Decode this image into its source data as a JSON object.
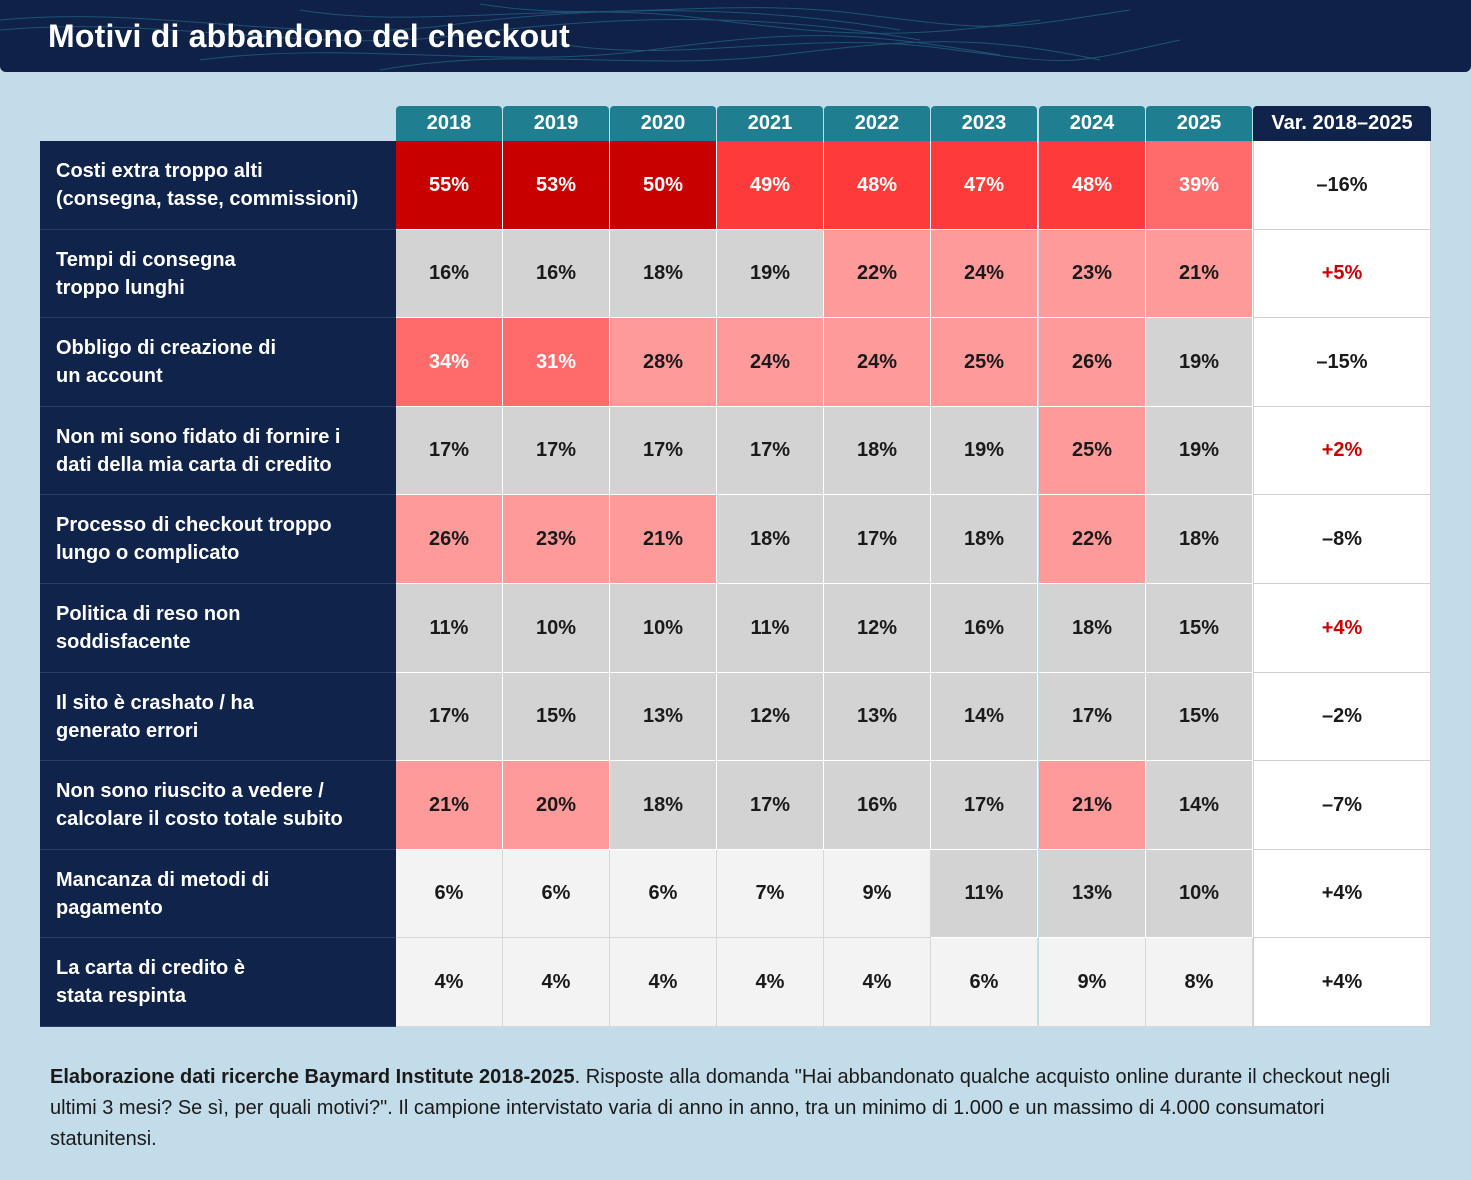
{
  "title": "Motivi di abbandono del checkout",
  "chart_data": {
    "type": "table",
    "title": "Motivi di abbandono del checkout",
    "columns": [
      "2018",
      "2019",
      "2020",
      "2021",
      "2022",
      "2023",
      "2024",
      "2025"
    ],
    "change_header": "Var. 2018–2025",
    "rows": [
      {
        "label": "Costi extra troppo alti\n(consegna, tasse, commissioni)",
        "values": [
          "55%",
          "53%",
          "50%",
          "49%",
          "48%",
          "47%",
          "48%",
          "39%"
        ],
        "change": "–16%"
      },
      {
        "label": "Tempi di consegna\ntroppo lunghi",
        "values": [
          "16%",
          "16%",
          "18%",
          "19%",
          "22%",
          "24%",
          "23%",
          "21%"
        ],
        "change": "+5%"
      },
      {
        "label": "Obbligo di creazione di\nun account",
        "values": [
          "34%",
          "31%",
          "28%",
          "24%",
          "24%",
          "25%",
          "26%",
          "19%"
        ],
        "change": "–15%"
      },
      {
        "label": "Non mi sono fidato di fornire i\ndati della mia carta di credito",
        "values": [
          "17%",
          "17%",
          "17%",
          "17%",
          "18%",
          "19%",
          "25%",
          "19%"
        ],
        "change": "+2%"
      },
      {
        "label": "Processo di checkout troppo\nlungo o complicato",
        "values": [
          "26%",
          "23%",
          "21%",
          "18%",
          "17%",
          "18%",
          "22%",
          "18%"
        ],
        "change": "–8%"
      },
      {
        "label": "Politica di reso non\nsoddisfacente",
        "values": [
          "11%",
          "10%",
          "10%",
          "11%",
          "12%",
          "16%",
          "18%",
          "15%"
        ],
        "change": "+4%"
      },
      {
        "label": "Il sito è crashato / ha\ngenerato errori",
        "values": [
          "17%",
          "15%",
          "13%",
          "12%",
          "13%",
          "14%",
          "17%",
          "15%"
        ],
        "change": "–2%"
      },
      {
        "label": "Non sono riuscito a vedere /\ncalcolare il costo totale subito",
        "values": [
          "21%",
          "20%",
          "18%",
          "17%",
          "16%",
          "17%",
          "21%",
          "14%"
        ],
        "change": "–7%"
      },
      {
        "label": "Mancanza di metodi di\npagamento",
        "values": [
          "6%",
          "6%",
          "6%",
          "7%",
          "9%",
          "11%",
          "13%",
          "10%"
        ],
        "change": "+4%"
      },
      {
        "label": "La carta di credito è\nstata respinta",
        "values": [
          "4%",
          "4%",
          "4%",
          "4%",
          "4%",
          "6%",
          "9%",
          "8%"
        ],
        "change": "+4%"
      }
    ],
    "cell_colors": [
      [
        "#c80000",
        "#c80000",
        "#c80000",
        "#ff3a3a",
        "#ff3a3a",
        "#ff3a3a",
        "#ff3a3a",
        "#ff6b6b"
      ],
      [
        "#d3d3d3",
        "#d3d3d3",
        "#d3d3d3",
        "#d3d3d3",
        "#ff9a9a",
        "#ff9a9a",
        "#ff9a9a",
        "#ff9a9a"
      ],
      [
        "#ff6b6b",
        "#ff6b6b",
        "#ff9a9a",
        "#ff9a9a",
        "#ff9a9a",
        "#ff9a9a",
        "#ff9a9a",
        "#d3d3d3"
      ],
      [
        "#d3d3d3",
        "#d3d3d3",
        "#d3d3d3",
        "#d3d3d3",
        "#d3d3d3",
        "#d3d3d3",
        "#ff9a9a",
        "#d3d3d3"
      ],
      [
        "#ff9a9a",
        "#ff9a9a",
        "#ff9a9a",
        "#d3d3d3",
        "#d3d3d3",
        "#d3d3d3",
        "#ff9a9a",
        "#d3d3d3"
      ],
      [
        "#d3d3d3",
        "#d3d3d3",
        "#d3d3d3",
        "#d3d3d3",
        "#d3d3d3",
        "#d3d3d3",
        "#d3d3d3",
        "#d3d3d3"
      ],
      [
        "#d3d3d3",
        "#d3d3d3",
        "#d3d3d3",
        "#d3d3d3",
        "#d3d3d3",
        "#d3d3d3",
        "#d3d3d3",
        "#d3d3d3"
      ],
      [
        "#ff9a9a",
        "#ff9a9a",
        "#d3d3d3",
        "#d3d3d3",
        "#d3d3d3",
        "#d3d3d3",
        "#ff9a9a",
        "#d3d3d3"
      ],
      [
        "#f3f3f3",
        "#f3f3f3",
        "#f3f3f3",
        "#f3f3f3",
        "#f3f3f3",
        "#d3d3d3",
        "#d3d3d3",
        "#d3d3d3"
      ],
      [
        "#f3f3f3",
        "#f3f3f3",
        "#f3f3f3",
        "#f3f3f3",
        "#f3f3f3",
        "#f3f3f3",
        "#f3f3f3",
        "#f3f3f3"
      ]
    ],
    "light_text_threshold": 30,
    "change_positive_color": "#cc0000",
    "change_positive_rows": [
      1,
      3,
      5
    ]
  },
  "footnote": {
    "bold": "Elaborazione dati ricerche Baymard Institute 2018-2025",
    "text": ". Risposte alla domanda \"Hai abbandonato qualche acquisto online durante il checkout negli ultimi 3 mesi? Se sì, per quali motivi?\". Il campione intervistato varia di anno in anno, tra un minimo di 1.000 e un massimo di 4.000 consumatori statunitensi."
  },
  "colors": {
    "background": "#c2dcea",
    "header": "#0f2146",
    "year_header": "#1f7f90",
    "row_label": "#10234a"
  }
}
